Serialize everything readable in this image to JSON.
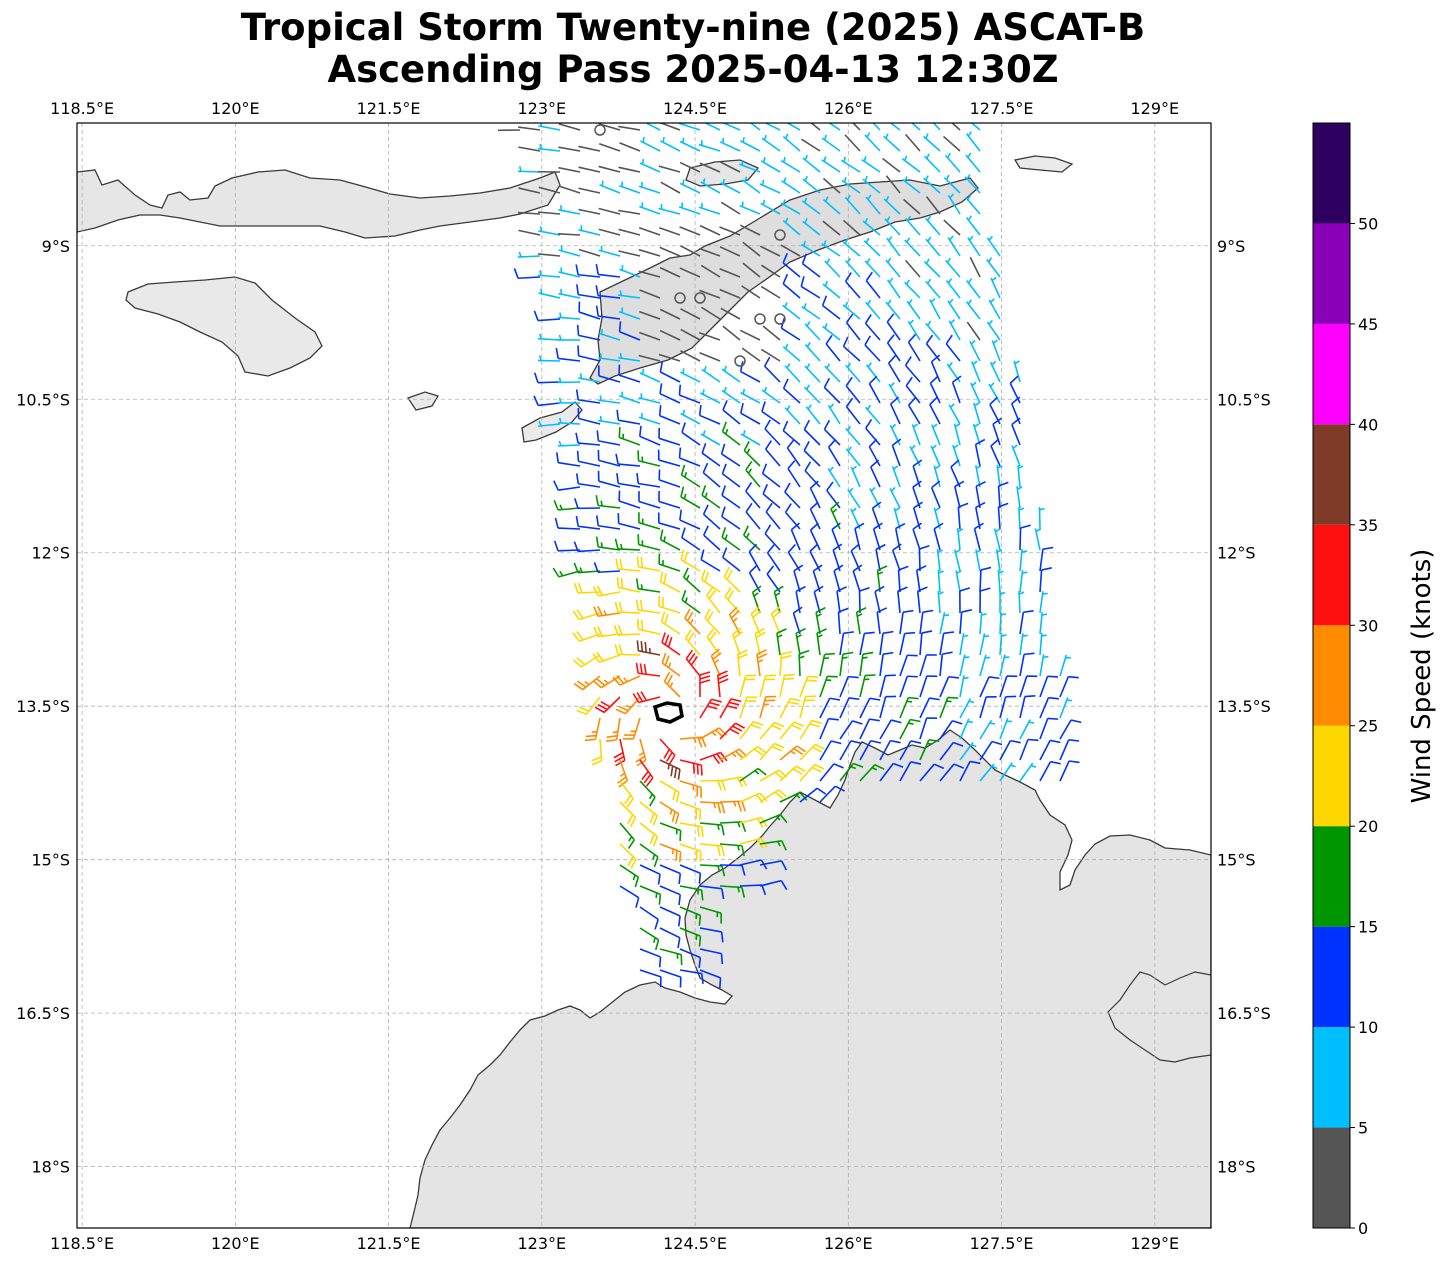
{
  "title": {
    "line1": "Tropical Storm Twenty-nine (2025) ASCAT-B",
    "line2": "Ascending Pass 2025-04-13 12:30Z"
  },
  "map": {
    "lon_range": [
      118.45,
      129.55
    ],
    "lat_range": [
      -18.6,
      -7.8
    ],
    "lon_ticks": [
      {
        "value": 118.5,
        "label": "118.5°E"
      },
      {
        "value": 120.0,
        "label": "120°E"
      },
      {
        "value": 121.5,
        "label": "121.5°E"
      },
      {
        "value": 123.0,
        "label": "123°E"
      },
      {
        "value": 124.5,
        "label": "124.5°E"
      },
      {
        "value": 126.0,
        "label": "126°E"
      },
      {
        "value": 127.5,
        "label": "127.5°E"
      },
      {
        "value": 129.0,
        "label": "129°E"
      }
    ],
    "lat_ticks": [
      {
        "value": -9.0,
        "label": "9°S"
      },
      {
        "value": -10.5,
        "label": "10.5°S"
      },
      {
        "value": -12.0,
        "label": "12°S"
      },
      {
        "value": -13.5,
        "label": "13.5°S"
      },
      {
        "value": -15.0,
        "label": "15°S"
      },
      {
        "value": -16.5,
        "label": "16.5°S"
      },
      {
        "value": -18.0,
        "label": "18°S"
      }
    ],
    "storm_center": {
      "lon": 124.25,
      "lat": -13.57
    },
    "colors": {
      "coastline": "#3a3a3a",
      "land": "#e4e4e4",
      "grid": "#b0b0b0",
      "center_marker": "#000000"
    }
  },
  "colorbar": {
    "label": "Wind Speed (knots)",
    "ticks": [
      0,
      5,
      10,
      15,
      20,
      25,
      30,
      35,
      40,
      45,
      50
    ],
    "bins": [
      {
        "min": 0,
        "max": 5,
        "color": "#555555"
      },
      {
        "min": 5,
        "max": 10,
        "color": "#00bfff"
      },
      {
        "min": 10,
        "max": 15,
        "color": "#0032ff"
      },
      {
        "min": 15,
        "max": 20,
        "color": "#009600"
      },
      {
        "min": 20,
        "max": 25,
        "color": "#ffd700"
      },
      {
        "min": 25,
        "max": 30,
        "color": "#ff8c00"
      },
      {
        "min": 30,
        "max": 35,
        "color": "#ff1010"
      },
      {
        "min": 35,
        "max": 40,
        "color": "#7f3a28"
      },
      {
        "min": 40,
        "max": 45,
        "color": "#ff00ff"
      },
      {
        "min": 45,
        "max": 50,
        "color": "#8a00b8"
      },
      {
        "min": 50,
        "max": 55,
        "color": "#2e0060"
      }
    ]
  }
}
